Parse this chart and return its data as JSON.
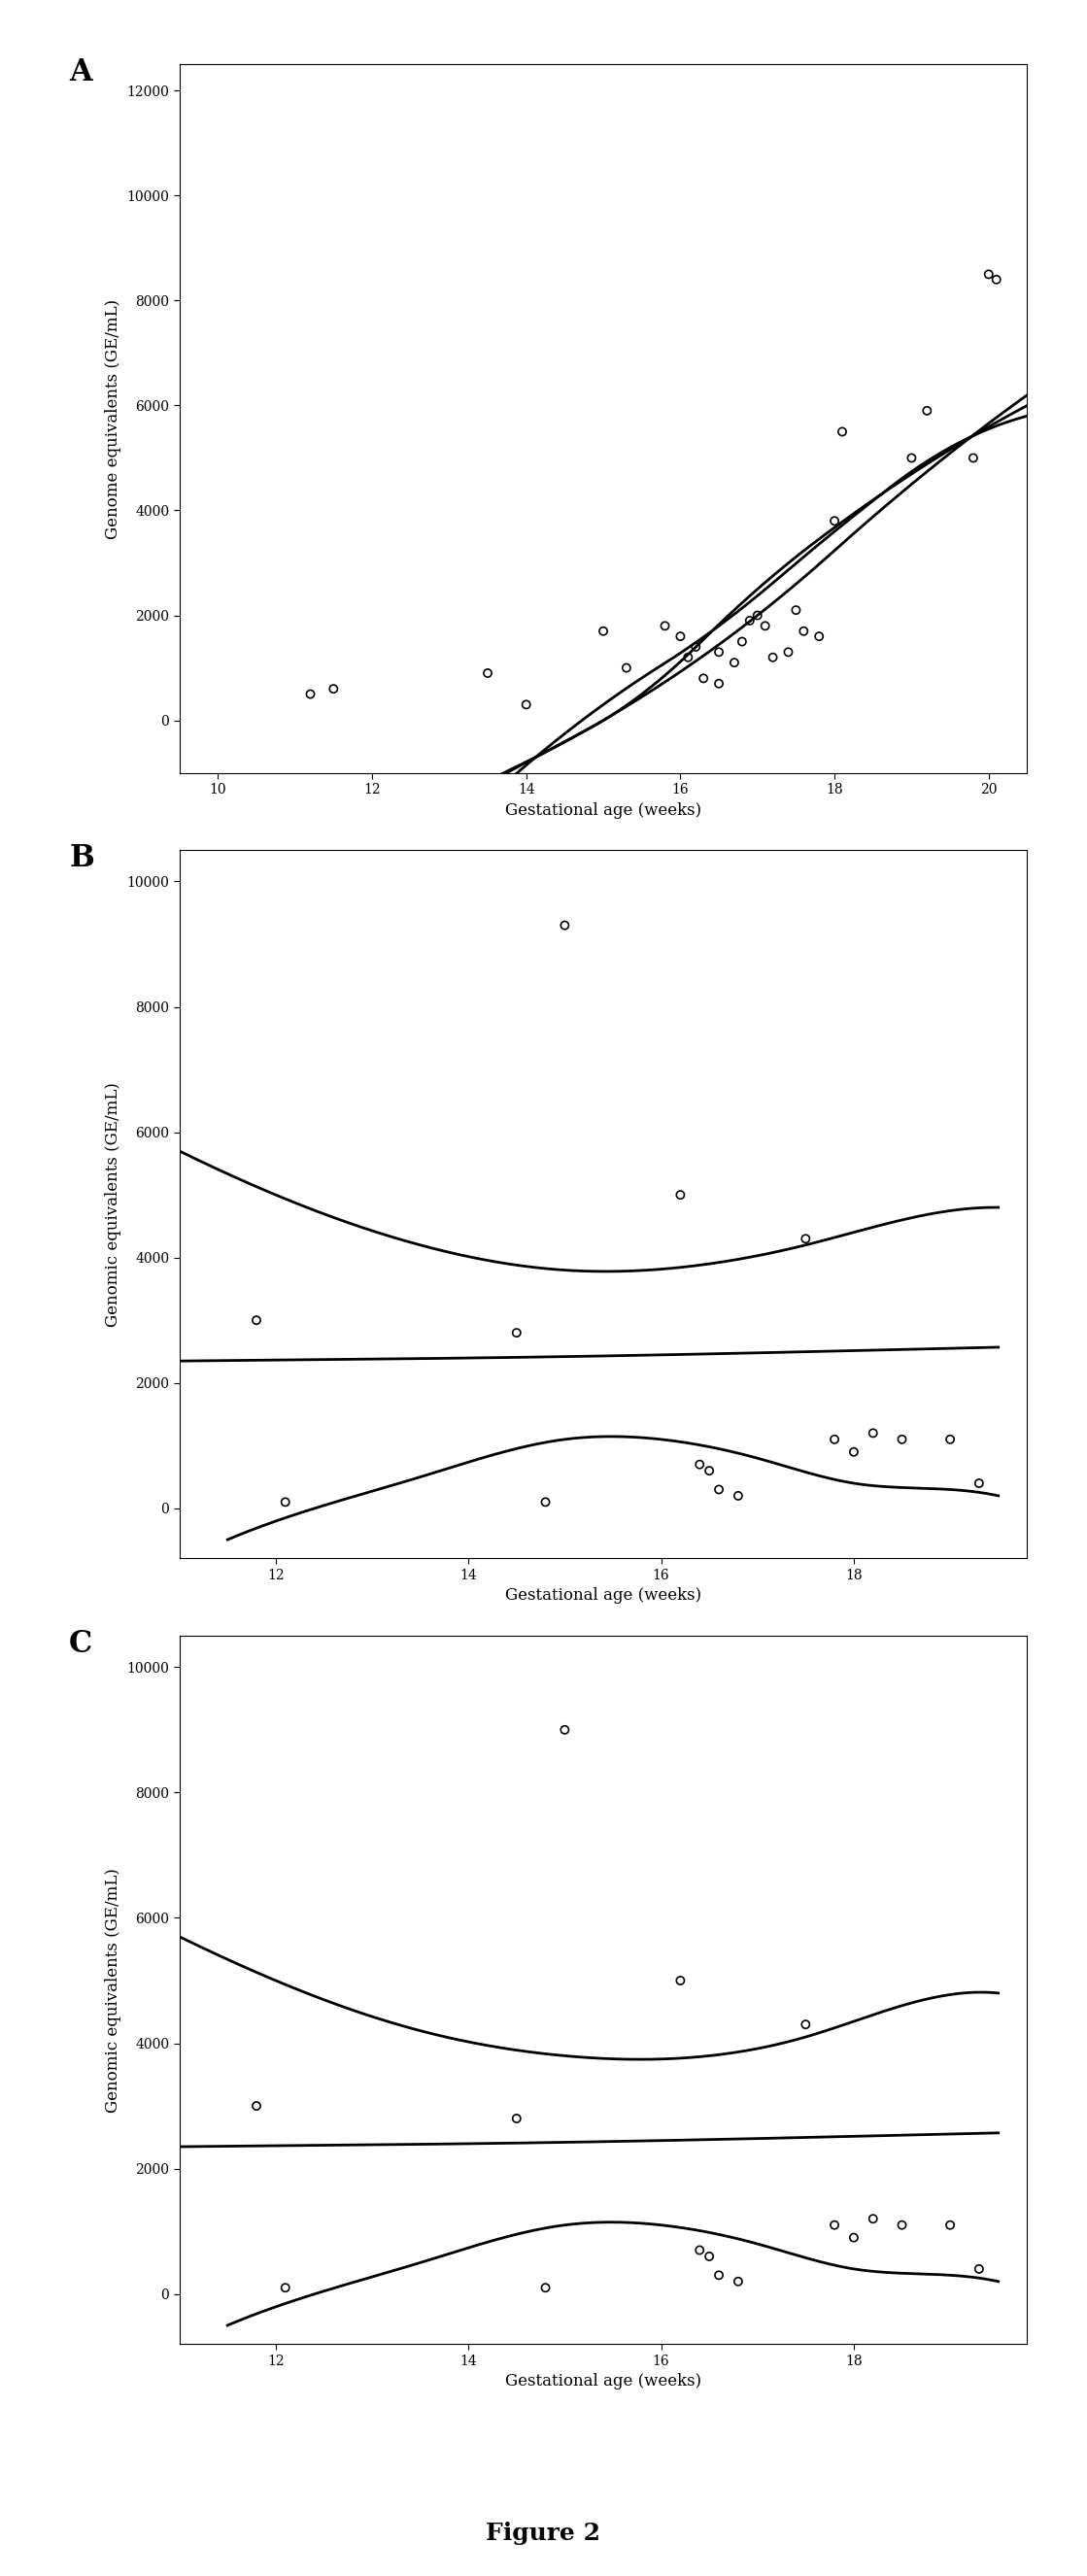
{
  "panel_A": {
    "label": "A",
    "xlabel": "Gestational age (weeks)",
    "ylabel": "Genome equivalents (GE/mL)",
    "xlim": [
      9.5,
      20.5
    ],
    "ylim": [
      -1000,
      12500
    ],
    "yticks": [
      0,
      2000,
      4000,
      6000,
      8000,
      10000,
      12000
    ],
    "xticks": [
      10,
      12,
      14,
      16,
      18,
      20
    ],
    "scatter_x": [
      11.2,
      11.5,
      13.5,
      14.0,
      15.0,
      15.3,
      15.8,
      16.0,
      16.1,
      16.2,
      16.3,
      16.5,
      16.5,
      16.7,
      16.8,
      16.9,
      17.0,
      17.1,
      17.2,
      17.4,
      17.5,
      17.6,
      17.8,
      18.0,
      18.1,
      19.0,
      19.2,
      19.8,
      20.0,
      20.1
    ],
    "scatter_y": [
      500,
      600,
      900,
      300,
      1700,
      1000,
      1800,
      1600,
      1200,
      1400,
      800,
      700,
      1300,
      1100,
      1500,
      1900,
      2000,
      1800,
      1200,
      1300,
      2100,
      1700,
      1600,
      3800,
      5500,
      5000,
      5900,
      5000,
      8500,
      8400
    ],
    "line1_x": [
      11.5,
      13.0,
      15.0,
      17.0,
      19.0,
      20.5
    ],
    "line1_y": [
      -2500,
      -1500,
      0,
      2000,
      4500,
      6200
    ],
    "line2_x": [
      12.5,
      14.0,
      15.5,
      17.0,
      18.5,
      20.5
    ],
    "line2_y": [
      -2000,
      -800,
      500,
      2500,
      4200,
      6000
    ],
    "line3_x": [
      13.5,
      15.0,
      16.5,
      18.0,
      19.5,
      20.5
    ],
    "line3_y": [
      -1500,
      300,
      1800,
      3600,
      5200,
      5800
    ]
  },
  "panel_B": {
    "label": "B",
    "xlabel": "Gestational age (weeks)",
    "ylabel": "Genomic equivalents (GE/mL)",
    "xlim": [
      11.0,
      19.8
    ],
    "ylim": [
      -800,
      10500
    ],
    "yticks": [
      0,
      2000,
      4000,
      6000,
      8000,
      10000
    ],
    "xticks": [
      12,
      14,
      16,
      18
    ],
    "scatter_x": [
      11.8,
      12.1,
      14.5,
      14.8,
      15.0,
      16.2,
      16.4,
      16.5,
      16.6,
      16.8,
      17.5,
      17.8,
      18.0,
      18.2,
      18.5,
      19.0,
      19.3
    ],
    "scatter_y": [
      3000,
      100,
      2800,
      100,
      9300,
      5000,
      700,
      600,
      300,
      200,
      4300,
      1100,
      900,
      1200,
      1100,
      1100,
      400
    ],
    "curve1_x": [
      11.0,
      12.0,
      13.5,
      15.0,
      16.5,
      17.5,
      18.5,
      19.5
    ],
    "curve1_y": [
      5700,
      5000,
      4200,
      3800,
      3900,
      4200,
      4600,
      4800
    ],
    "curve2_x": [
      11.0,
      13.0,
      15.0,
      17.0,
      19.5
    ],
    "curve2_y": [
      2350,
      2380,
      2420,
      2480,
      2570
    ],
    "curve3_x": [
      11.5,
      12.2,
      13.5,
      15.0,
      16.0,
      17.0,
      18.0,
      19.0,
      19.5
    ],
    "curve3_y": [
      -500,
      -100,
      500,
      1100,
      1100,
      800,
      400,
      300,
      200
    ]
  },
  "panel_C": {
    "label": "C",
    "xlabel": "Gestational age (weeks)",
    "ylabel": "Genomic equivalents (GE/mL)",
    "xlim": [
      11.0,
      19.8
    ],
    "ylim": [
      -800,
      10500
    ],
    "yticks": [
      0,
      2000,
      4000,
      6000,
      8000,
      10000
    ],
    "xticks": [
      12,
      14,
      16,
      18
    ],
    "scatter_x": [
      11.8,
      12.1,
      14.5,
      14.8,
      15.0,
      16.2,
      16.4,
      16.5,
      16.6,
      16.8,
      17.5,
      17.8,
      18.0,
      18.2,
      18.5,
      19.0,
      19.3
    ],
    "scatter_y": [
      3000,
      100,
      2800,
      100,
      9000,
      5000,
      700,
      600,
      300,
      200,
      4300,
      1100,
      900,
      1200,
      1100,
      1100,
      400
    ],
    "curve1_x": [
      11.0,
      12.0,
      13.5,
      15.0,
      16.5,
      17.5,
      18.5,
      19.5
    ],
    "curve1_y": [
      5700,
      5000,
      4200,
      3800,
      3800,
      4100,
      4600,
      4800
    ],
    "curve2_x": [
      11.0,
      13.0,
      15.0,
      17.0,
      19.5
    ],
    "curve2_y": [
      2350,
      2380,
      2420,
      2480,
      2570
    ],
    "curve3_x": [
      11.5,
      12.2,
      13.5,
      15.0,
      16.0,
      17.0,
      18.0,
      19.0,
      19.5
    ],
    "curve3_y": [
      -500,
      -100,
      500,
      1100,
      1100,
      800,
      400,
      300,
      200
    ]
  },
  "figure_label": "Figure 2",
  "bg_color": "#ffffff",
  "line_color": "#000000",
  "scatter_color": "#000000",
  "scatter_marker": "o",
  "scatter_facecolor": "none",
  "scatter_edgewidth": 1.2,
  "scatter_size": 35,
  "line_width": 2.0,
  "font_family": "DejaVu Serif",
  "label_fontsize": 22,
  "tick_fontsize": 10,
  "axis_label_fontsize": 12
}
